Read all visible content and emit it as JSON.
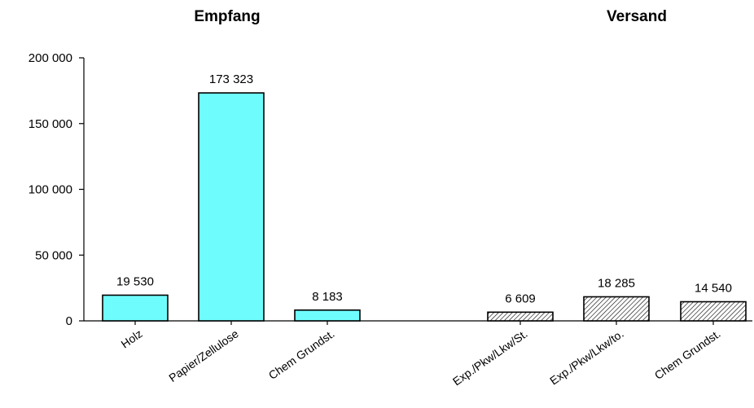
{
  "chart_data": {
    "type": "bar",
    "ylim": [
      0,
      200000
    ],
    "yticks": [
      0,
      50000,
      100000,
      150000,
      200000
    ],
    "ytick_labels": [
      "0",
      "50 000",
      "100 000",
      "150 000",
      "200 000"
    ],
    "groups": [
      {
        "title": "Empfang",
        "fill": "#6ffcfc",
        "pattern": "solid",
        "categories": [
          "Holz",
          "Papier/Zellulose",
          "Chem Grundst."
        ],
        "values": [
          19530,
          173323,
          8183
        ],
        "value_labels": [
          "19 530",
          "173 323",
          "8 183"
        ]
      },
      {
        "title": "Versand",
        "fill": "#ffffff",
        "pattern": "diagonal-hatch",
        "categories": [
          "Exp./Pkw/Lkw/St.",
          "Exp./Pkw/Lkw/to.",
          "Chem Grundst."
        ],
        "values": [
          6609,
          18285,
          14540
        ],
        "value_labels": [
          "6 609",
          "18 285",
          "14 540"
        ]
      }
    ]
  }
}
